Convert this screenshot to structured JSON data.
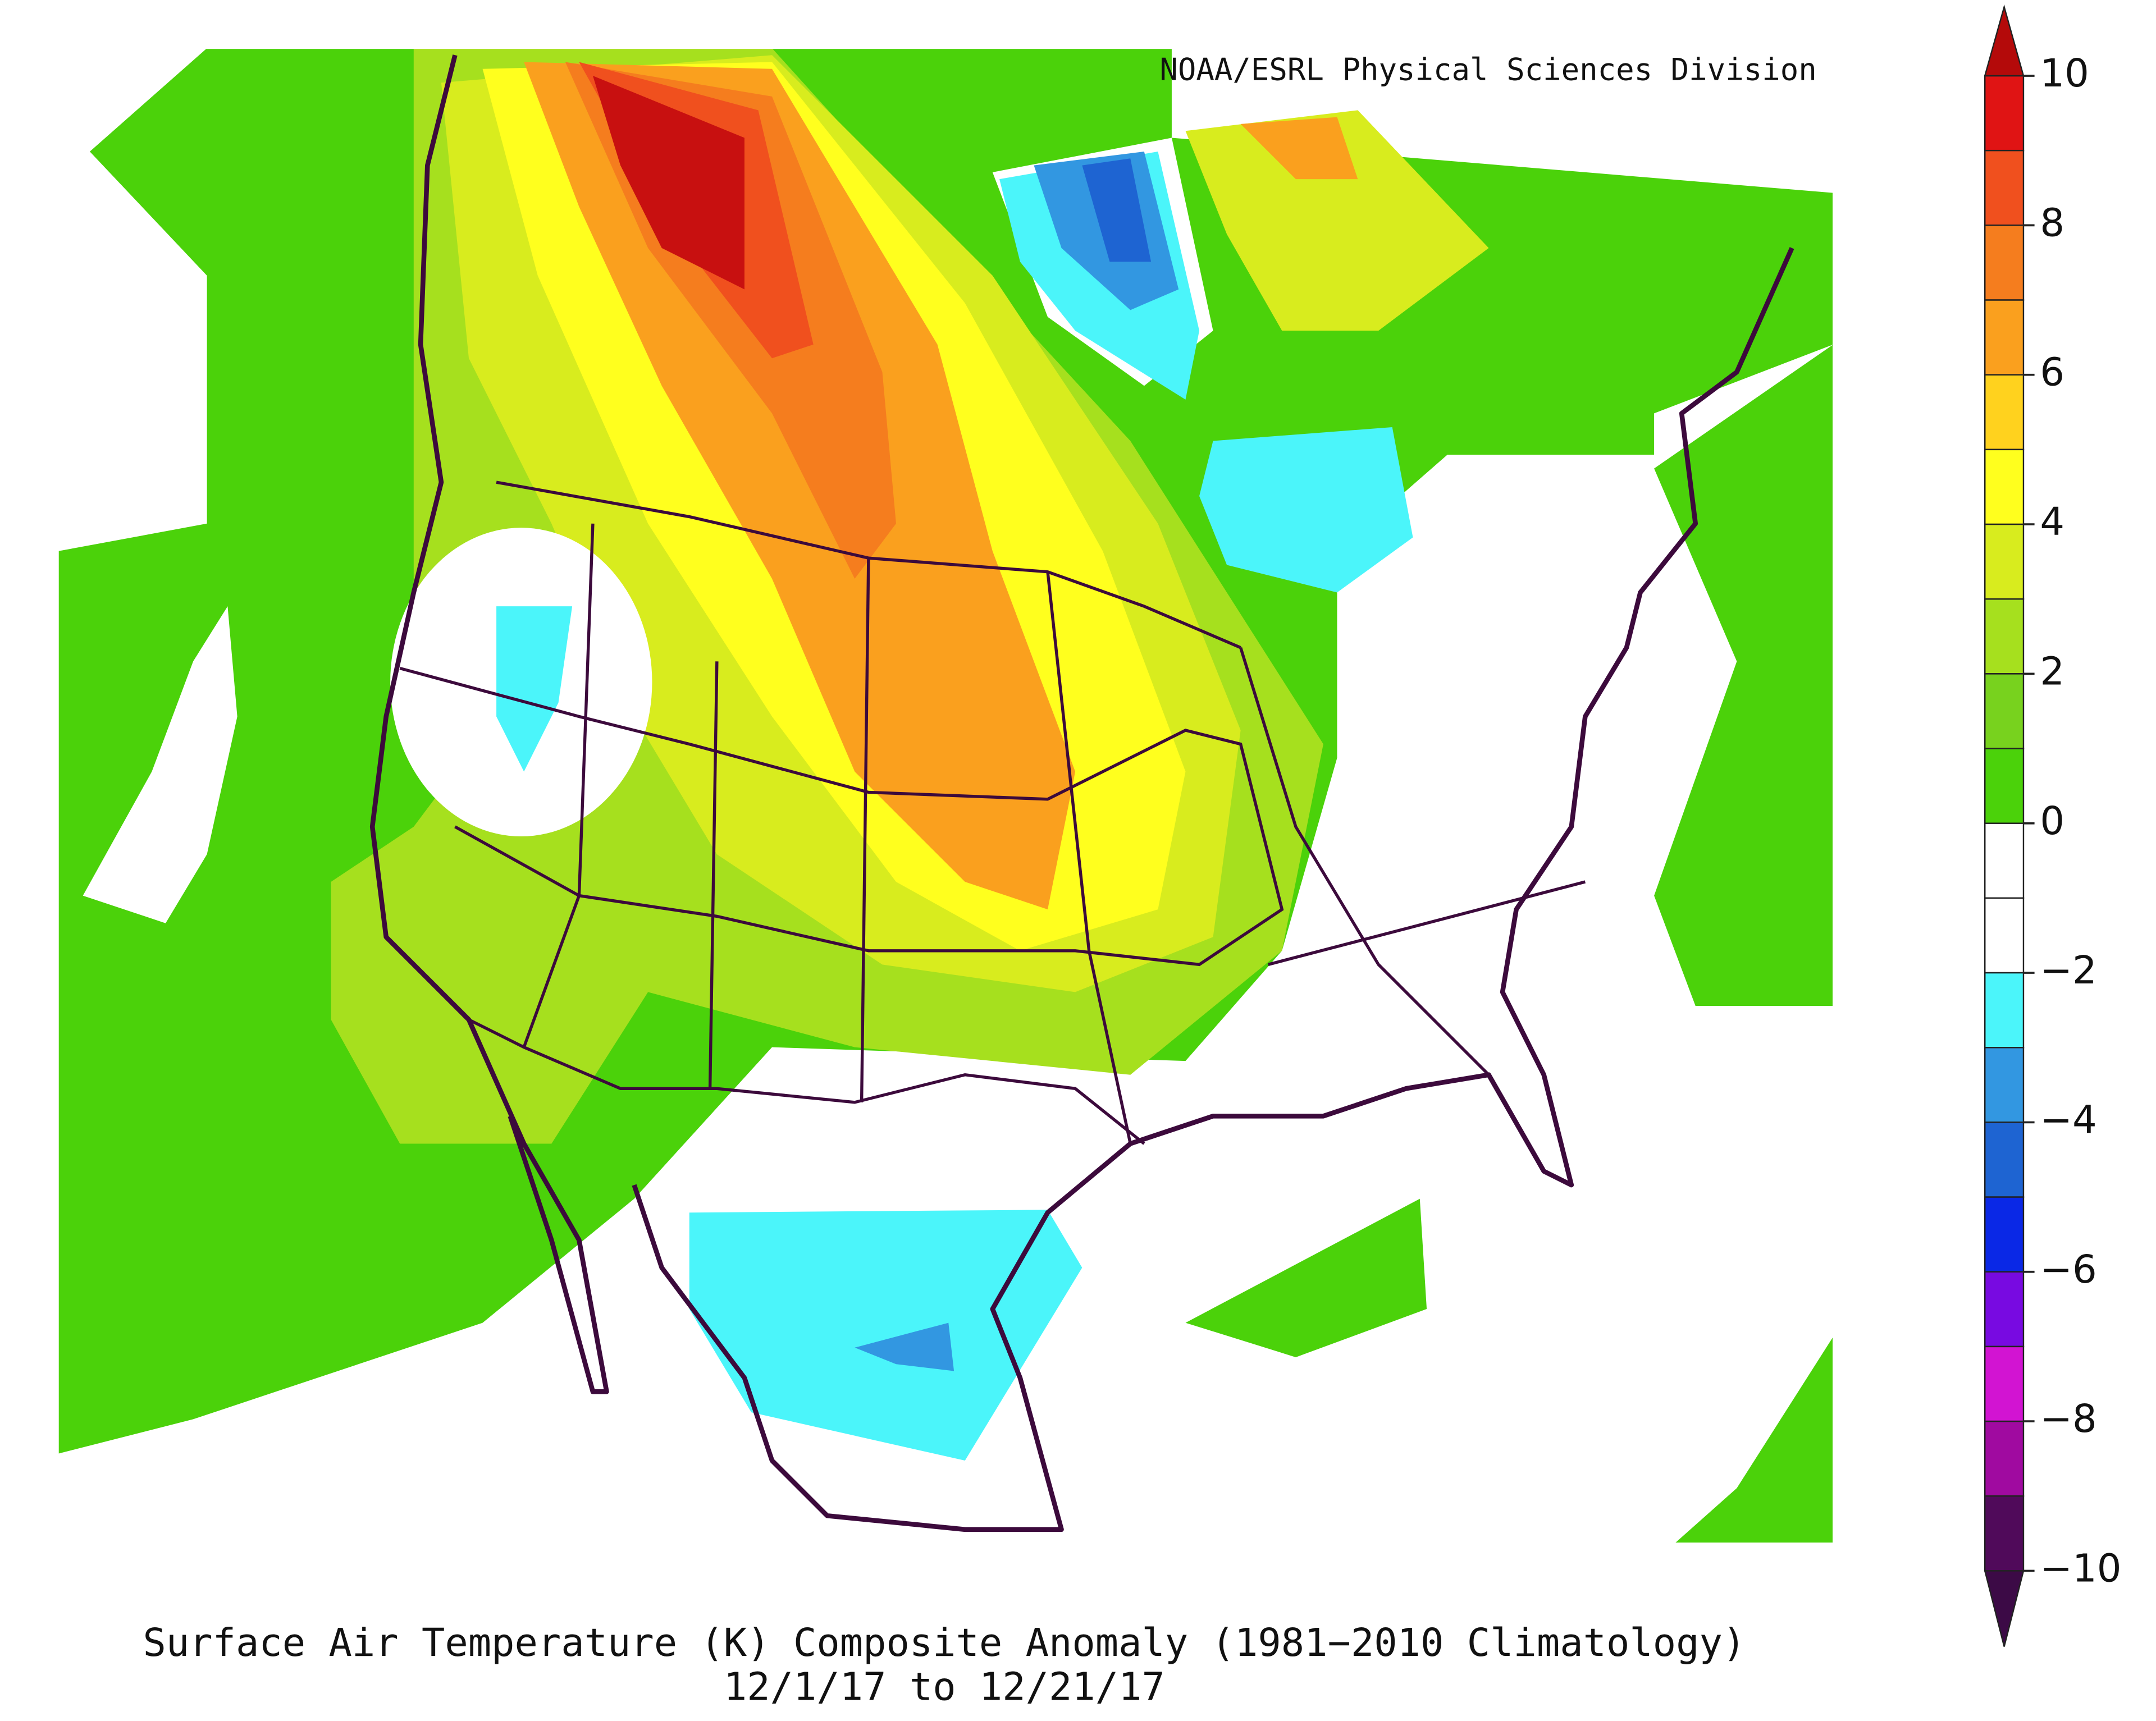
{
  "credit": "NOAA/ESRL Physical Sciences Division",
  "caption": {
    "title": "Surface Air Temperature (K) Composite Anomaly (1981−2010 Climatology)",
    "dates": "12/1/17  to 12/21/17"
  },
  "colorbar": {
    "lim": [
      -10,
      10
    ],
    "ticks": [
      10,
      8,
      6,
      4,
      2,
      0,
      {
        "value": -2,
        "label": "−2"
      },
      {
        "value": -4,
        "label": "−4"
      },
      {
        "value": -6,
        "label": "−6"
      },
      {
        "value": -8,
        "label": "−8"
      },
      {
        "value": -10,
        "label": "−10"
      }
    ],
    "colors": [
      "#e01414",
      "#f0501e",
      "#f57d1e",
      "#faa01e",
      "#ffd21e",
      "#ffff1e",
      "#d8ec1e",
      "#a6e01e",
      "#78d21e",
      "#4bd20a",
      "#ffffff",
      "#ffffff",
      "#4bf5fa",
      "#3297e1",
      "#1e64d2",
      "#0a28e6",
      "#780ae1",
      "#d214d2",
      "#a00aa0",
      "#500a5a"
    ],
    "top_color": "#b40a0a",
    "bottom_color": "#3c0a46"
  }
}
